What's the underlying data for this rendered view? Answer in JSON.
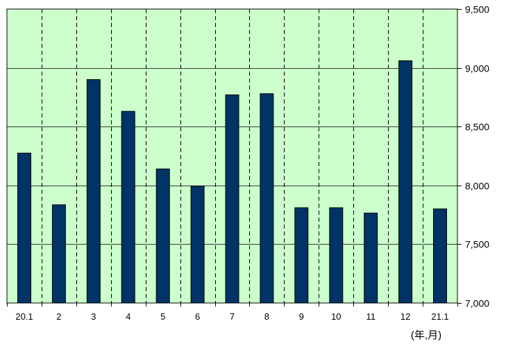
{
  "chart_data": {
    "type": "bar",
    "categories": [
      "20.1",
      "2",
      "3",
      "4",
      "5",
      "6",
      "7",
      "8",
      "9",
      "10",
      "11",
      "12",
      "21.1"
    ],
    "values": [
      8275,
      7835,
      8900,
      8630,
      8140,
      7995,
      8770,
      8780,
      7810,
      7810,
      7765,
      9060,
      7800
    ],
    "title": "",
    "xlabel": "(年,月)",
    "ylabel": "",
    "ylim": [
      7000,
      9500
    ],
    "yticks": [
      7000,
      7500,
      8000,
      8500,
      9000,
      9500
    ],
    "ytick_labels": [
      "7,000",
      "7,500",
      "8,000",
      "8,500",
      "9,000",
      "9,500"
    ],
    "y_axis_position": "right",
    "grid": true,
    "legend": "none",
    "colors": {
      "plot_background": "#ccffcc",
      "bar_fill": "#003366",
      "bar_stroke": "#000000",
      "gridline": "#000000"
    }
  }
}
